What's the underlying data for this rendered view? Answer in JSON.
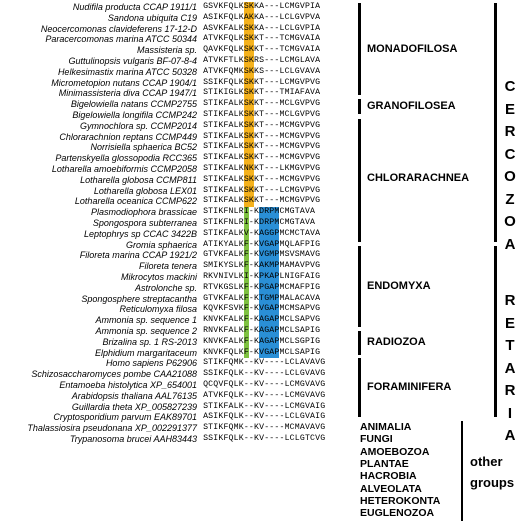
{
  "rows": [
    {
      "species": "Nudifila producta CCAP 1911/1",
      "seq": "GSVKFQLKSKKA---LCMGVPIA",
      "hl": [
        {
          "from": 8,
          "to": 9,
          "color": "orange"
        }
      ]
    },
    {
      "species": "Sandona ubiquita C19",
      "seq": "ASIKFQLKAKKA---LCLGVPVA",
      "hl": [
        {
          "from": 8,
          "to": 9,
          "color": "orange"
        }
      ]
    },
    {
      "species": "Neocercomonas clavideferens 17-12-D",
      "seq": "ASVKFALKSKKA---LCLGVPIA",
      "hl": [
        {
          "from": 8,
          "to": 9,
          "color": "orange"
        }
      ]
    },
    {
      "species": "Paracercomonas marina ATCC 50344",
      "seq": "ATVKFQLKSKKT---TCMGVAIA",
      "hl": [
        {
          "from": 8,
          "to": 9,
          "color": "orange"
        }
      ]
    },
    {
      "species": "Massisteria sp.",
      "seq": "QAVKFQLKSKKT---TCMGVAIA",
      "hl": [
        {
          "from": 8,
          "to": 9,
          "color": "orange"
        }
      ]
    },
    {
      "species": "Guttulinopsis vulgaris BF-07-8-4",
      "seq": "ATVKFTLKSKRS---LCMGLAVA",
      "hl": [
        {
          "from": 8,
          "to": 9,
          "color": "orange"
        }
      ]
    },
    {
      "species": "Helkesimastix marina ATCC 50328",
      "seq": "ATVKFQMKSKKS---LCLGVAVA",
      "hl": [
        {
          "from": 8,
          "to": 9,
          "color": "orange"
        }
      ]
    },
    {
      "species": "Micrometopion nutans CCAP 1904/1",
      "seq": "SSIKFQLKSKKT---LCMGVPVG",
      "hl": [
        {
          "from": 8,
          "to": 9,
          "color": "orange"
        }
      ]
    },
    {
      "species": "Minimassisteria diva CCAP 1947/1",
      "seq": "STIKIGLKSKKT---TMIAFAVA",
      "hl": [
        {
          "from": 8,
          "to": 9,
          "color": "orange"
        }
      ]
    },
    {
      "species": "Bigelowiella natans CCMP2755",
      "seq": "STIKFALKSKKT---MCLGVPVG",
      "hl": [
        {
          "from": 8,
          "to": 9,
          "color": "orange"
        }
      ]
    },
    {
      "species": "Bigelowiella longifila CCMP242",
      "seq": "STIKFALKSKKT---MCLGVPVG",
      "hl": [
        {
          "from": 8,
          "to": 9,
          "color": "orange"
        }
      ]
    },
    {
      "species": "Gymnochlora sp. CCMP2014",
      "seq": "STIKFALKSKKT---MCMGVPVG",
      "hl": [
        {
          "from": 8,
          "to": 9,
          "color": "orange"
        }
      ]
    },
    {
      "species": "Chlorarachnion reptans CCMP449",
      "seq": "STIKFALKSKKT---MCMGVPVG",
      "hl": [
        {
          "from": 8,
          "to": 9,
          "color": "orange"
        }
      ]
    },
    {
      "species": "Norrisiella sphaerica BC52",
      "seq": "STIKFALKSKKT---MCMGVPVG",
      "hl": [
        {
          "from": 8,
          "to": 9,
          "color": "orange"
        }
      ]
    },
    {
      "species": "Partenskyella glossopodia RCC365",
      "seq": "STIKFALKSKKT---MCMGVPVG",
      "hl": [
        {
          "from": 8,
          "to": 9,
          "color": "orange"
        }
      ]
    },
    {
      "species": "Lotharella amoebiformis CCMP2058",
      "seq": "STIKFALKNKKT---LKMGVPVG",
      "hl": [
        {
          "from": 8,
          "to": 9,
          "color": "orange"
        }
      ]
    },
    {
      "species": "Lotharella globosa CCMP811",
      "seq": "STIKFALKSKKT---MCMGVPVG",
      "hl": [
        {
          "from": 8,
          "to": 9,
          "color": "orange"
        }
      ]
    },
    {
      "species": "Lotharella globosa LEX01",
      "seq": "STIKFALKSKKT---LCMGVPVG",
      "hl": [
        {
          "from": 8,
          "to": 9,
          "color": "orange"
        }
      ]
    },
    {
      "species": "Lotharella oceanica CCMP622",
      "seq": "STIKFALKSKKT---MCMGVPVG",
      "hl": [
        {
          "from": 8,
          "to": 9,
          "color": "orange"
        }
      ]
    },
    {
      "species": "Plasmodiophora brassicae",
      "seq": "STIKFNLRI-KDRPMCMGTAVA",
      "hl": [
        {
          "from": 8,
          "to": 8,
          "color": "green"
        },
        {
          "from": 11,
          "to": 14,
          "color": "blue"
        }
      ]
    },
    {
      "species": "Spongospora subterranea",
      "seq": "STIKFNLRI-KDRPMCMGTAVA",
      "hl": [
        {
          "from": 8,
          "to": 8,
          "color": "green"
        },
        {
          "from": 11,
          "to": 14,
          "color": "blue"
        }
      ]
    },
    {
      "species": "Leptophrys sp CCAC 3422B",
      "seq": "STIKFALKV-KAGGPMCMCTAVA",
      "hl": [
        {
          "from": 8,
          "to": 8,
          "color": "green"
        },
        {
          "from": 11,
          "to": 14,
          "color": "blue"
        }
      ]
    },
    {
      "species": "Gromia sphaerica",
      "seq": "ATIKYALKF-KVGAPMQLAFPIG",
      "hl": [
        {
          "from": 8,
          "to": 8,
          "color": "green"
        },
        {
          "from": 11,
          "to": 14,
          "color": "blue"
        }
      ]
    },
    {
      "species": "Filoreta marina CCAP 1921/2",
      "seq": "GTVKFALKF-KVGMPMSVSMAVG",
      "hl": [
        {
          "from": 8,
          "to": 8,
          "color": "green"
        },
        {
          "from": 11,
          "to": 14,
          "color": "blue"
        }
      ]
    },
    {
      "species": "Filoreta tenera",
      "seq": "SMIKYSLKF-KAKMPMAMAVPVG",
      "hl": [
        {
          "from": 8,
          "to": 8,
          "color": "green"
        },
        {
          "from": 11,
          "to": 14,
          "color": "blue"
        }
      ]
    },
    {
      "species": "Mikrocytos mackini",
      "seq": "RKVNIVLKI-KPKAPLNIGFAIG",
      "hl": [
        {
          "from": 8,
          "to": 8,
          "color": "green"
        },
        {
          "from": 11,
          "to": 14,
          "color": "blue"
        }
      ]
    },
    {
      "species": "Astrolonche sp.",
      "seq": "RTVKGSLKF-KPGAPMCMAFPIG",
      "hl": [
        {
          "from": 8,
          "to": 8,
          "color": "green"
        },
        {
          "from": 11,
          "to": 14,
          "color": "blue"
        }
      ]
    },
    {
      "species": "Spongosphere streptacantha",
      "seq": "GTVKFALKF-KTGMPMALACAVA",
      "hl": [
        {
          "from": 8,
          "to": 8,
          "color": "green"
        },
        {
          "from": 11,
          "to": 14,
          "color": "blue"
        }
      ]
    },
    {
      "species": "Reticulomyxa filosa",
      "seq": "KQVKFSVKF-KVGAPMCMSAPVG",
      "hl": [
        {
          "from": 8,
          "to": 8,
          "color": "green"
        },
        {
          "from": 11,
          "to": 14,
          "color": "blue"
        }
      ]
    },
    {
      "species": "Ammonia sp. sequence 1",
      "seq": "KNVKFALKF-KAGAPMCLSAPVG",
      "hl": [
        {
          "from": 8,
          "to": 8,
          "color": "green"
        },
        {
          "from": 11,
          "to": 14,
          "color": "blue"
        }
      ]
    },
    {
      "species": "Ammonia sp. sequence 2",
      "seq": "RNVKFALKF-KAGAPMCLSAPIG",
      "hl": [
        {
          "from": 8,
          "to": 8,
          "color": "green"
        },
        {
          "from": 11,
          "to": 14,
          "color": "blue"
        }
      ]
    },
    {
      "species": "Brizalina sp. 1 RS-2013",
      "seq": "KNVKFALKF-KAGAPMCLSGPIG",
      "hl": [
        {
          "from": 8,
          "to": 8,
          "color": "green"
        },
        {
          "from": 11,
          "to": 14,
          "color": "blue"
        }
      ]
    },
    {
      "species": "Elphidium margaritaceum",
      "seq": "KNVKFQLKF-KVGAPMCLSAPIG",
      "hl": [
        {
          "from": 8,
          "to": 8,
          "color": "green"
        },
        {
          "from": 11,
          "to": 14,
          "color": "blue"
        }
      ]
    },
    {
      "species": "Homo sapiens P62906",
      "seq": "STIKFQMK--KV----LCLAVAVG",
      "hl": []
    },
    {
      "species": "Schizosaccharomyces pombe CAA21088",
      "seq": "SSIKFQLK--KV----LCLGVAVG",
      "hl": []
    },
    {
      "species": "Entamoeba histolytica XP_654001",
      "seq": "QCQVFQLK--KV----LCMGVAVG",
      "hl": []
    },
    {
      "species": "Arabidopsis thaliana AAL76135",
      "seq": "ATVKFQLK--KV----LCMGVAVG",
      "hl": []
    },
    {
      "species": "Guillardia theta XP_005827239",
      "seq": "STIKFALK--KV----LCMGVAIG",
      "hl": []
    },
    {
      "species": "Cryptosporidium parvum EAK89701",
      "seq": "ASIKFQLK--KV----LCLGVAIG",
      "hl": []
    },
    {
      "species": "Thalassiosira pseudonana XP_002291377",
      "seq": "STIKFQMK--KV----MCMAVAVG",
      "hl": []
    },
    {
      "species": "Trypanosoma brucei AAH83443",
      "seq": "SSIKFQLK--KV----LCLGTCVG",
      "hl": []
    }
  ],
  "groups": [
    {
      "label": "MONADOFILOSA"
    },
    {
      "label": "GRANOFILOSEA"
    },
    {
      "label": "CHLORARACHNEA"
    },
    {
      "label": "ENDOMYXA"
    },
    {
      "label": "RADIOZOA"
    },
    {
      "label": "FORAMINIFERA"
    }
  ],
  "supergroups": [
    {
      "letters": [
        "C",
        "E",
        "R",
        "C",
        "O",
        "Z",
        "O",
        "A"
      ]
    },
    {
      "letters": [
        "R",
        "E",
        "T",
        "A",
        "R",
        "I",
        "A"
      ]
    }
  ],
  "other": {
    "labels": [
      "ANIMALIA",
      "FUNGI",
      "AMOEBOZOA",
      "PLANTAE",
      "HACROBIA",
      "ALVEOLATA",
      "HETEROKONTA",
      "EUGLENOZOA"
    ],
    "title_line1": "other",
    "title_line2": "groups"
  },
  "colors": {
    "orange": "#f5b21d",
    "green": "#7ec240",
    "blue": "#2a8fd6"
  }
}
